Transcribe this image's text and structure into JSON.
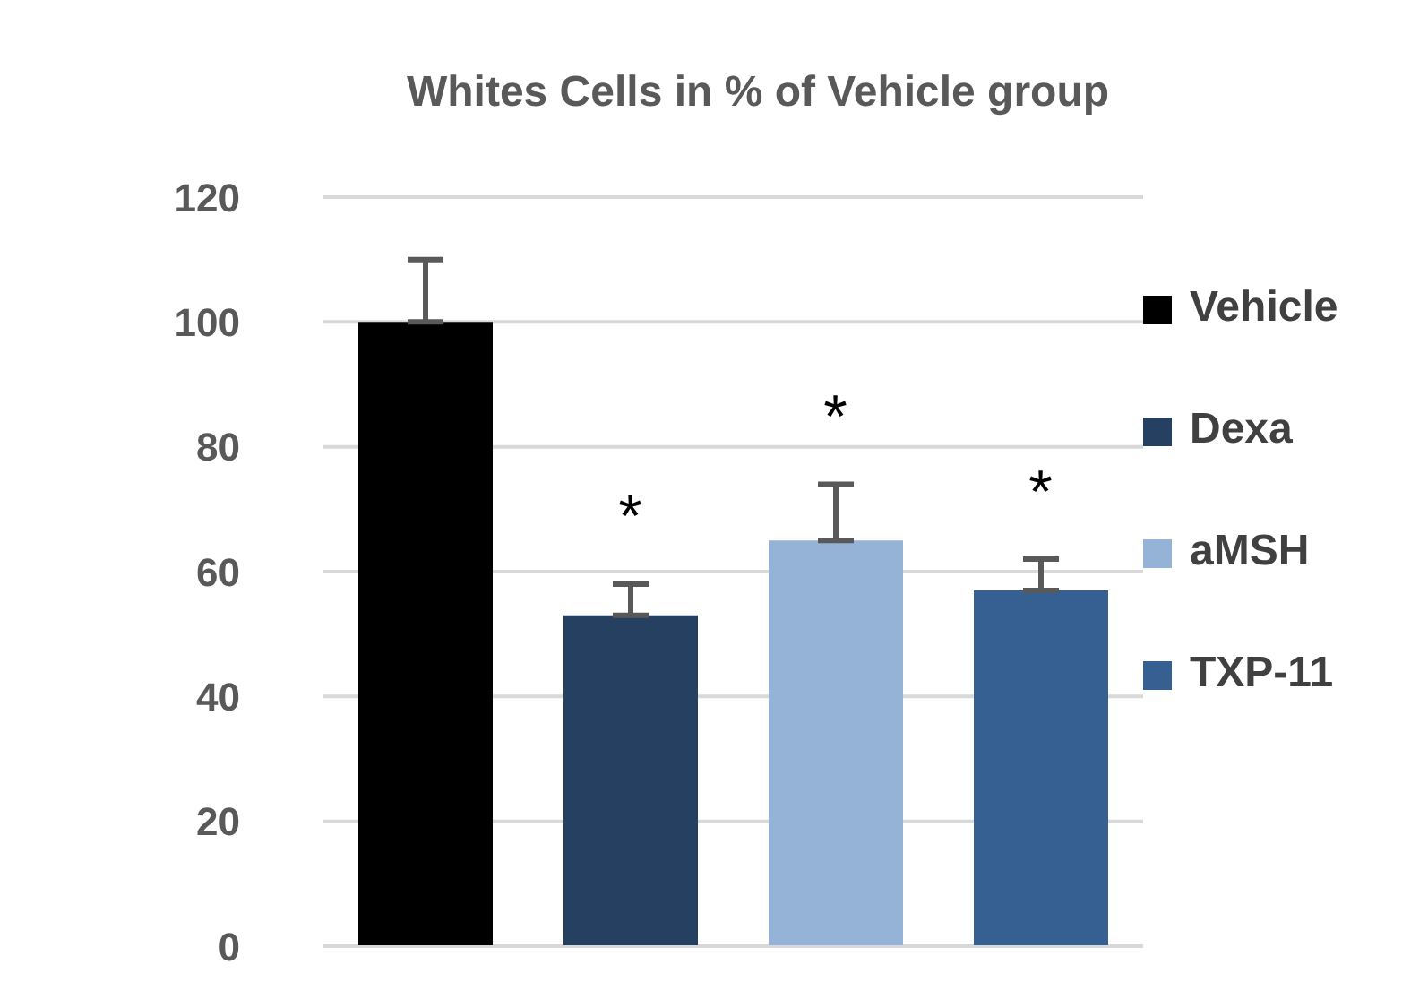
{
  "chart_data": {
    "type": "bar",
    "title": "Whites Cells in % of Vehicle group",
    "categories": [
      null,
      null,
      null,
      null
    ],
    "stacked": true,
    "series": [
      {
        "name": "Vehicle",
        "color": "#000000",
        "values": [
          100,
          null,
          null,
          null
        ],
        "errors": [
          [
            100,
            110
          ],
          null,
          null,
          null
        ]
      },
      {
        "name": "Dexa",
        "color": "#264061",
        "values": [
          null,
          53,
          null,
          null
        ],
        "errors": [
          null,
          [
            53,
            58
          ],
          null,
          null
        ]
      },
      {
        "name": "aMSH",
        "color": "#95b3d7",
        "values": [
          null,
          null,
          65,
          null
        ],
        "errors": [
          null,
          null,
          [
            65,
            74
          ],
          null
        ]
      },
      {
        "name": "TXP-11",
        "color": "#366092",
        "values": [
          null,
          null,
          null,
          57
        ],
        "errors": [
          null,
          null,
          null,
          [
            57,
            62
          ]
        ]
      }
    ],
    "ylim": [
      0,
      120
    ],
    "yticks": [
      0,
      20,
      40,
      60,
      80,
      100,
      120
    ],
    "grid": "y",
    "legend": "right",
    "tick_labels": "y",
    "annotations": [
      "*",
      "*",
      "*"
    ]
  }
}
